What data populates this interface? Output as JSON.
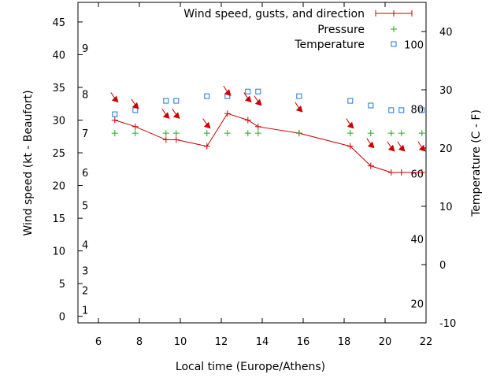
{
  "chart_data": {
    "type": "line",
    "xlabel": "Local time (Europe/Athens)",
    "ylabel": "Wind speed (kt - Beaufort)",
    "y2label": "Temperature (C - F)",
    "xlim": [
      5,
      22
    ],
    "ylim": [
      -1,
      48
    ],
    "y2lim": [
      -10,
      45
    ],
    "x_ticks": [
      6,
      8,
      10,
      12,
      14,
      16,
      18,
      20,
      22
    ],
    "y_ticks": [
      0,
      5,
      10,
      15,
      20,
      25,
      30,
      35,
      40,
      45
    ],
    "y2_ticks": [
      -10,
      0,
      10,
      20,
      30,
      40
    ],
    "beaufort_labels": [
      {
        "label": "1",
        "kt": 1
      },
      {
        "label": "2",
        "kt": 4
      },
      {
        "label": "3",
        "kt": 7
      },
      {
        "label": "4",
        "kt": 11
      },
      {
        "label": "5",
        "kt": 17
      },
      {
        "label": "6",
        "kt": 22
      },
      {
        "label": "7",
        "kt": 28
      },
      {
        "label": "8",
        "kt": 34
      },
      {
        "label": "9",
        "kt": 41
      }
    ],
    "fahrenheit_labels": [
      {
        "label": "20",
        "c": -6.7
      },
      {
        "label": "40",
        "c": 4.4
      },
      {
        "label": "60",
        "c": 15.6
      },
      {
        "label": "80",
        "c": 26.7
      },
      {
        "label": "100",
        "c": 37.8
      }
    ],
    "legend": {
      "position": "top-right",
      "entries": [
        "Wind speed, gusts, and direction",
        "Pressure",
        "Temperature"
      ]
    },
    "series": [
      {
        "name": "Wind speed, gusts, and direction",
        "style": "line-points",
        "color": "#cc0000",
        "x": [
          6.8,
          7.8,
          9.3,
          9.8,
          11.3,
          12.3,
          13.3,
          13.8,
          15.8,
          18.3,
          19.3,
          20.3,
          20.8,
          21.8
        ],
        "y": [
          30,
          29,
          27,
          27,
          26,
          31,
          30,
          29,
          28,
          26,
          23,
          22,
          22,
          22
        ]
      },
      {
        "name": "Pressure",
        "style": "points-plus",
        "color": "#22aa22",
        "x": [
          6.8,
          7.8,
          9.3,
          9.8,
          11.3,
          12.3,
          13.3,
          13.8,
          15.8,
          18.3,
          19.3,
          20.3,
          20.8,
          21.8
        ],
        "y": [
          28,
          28,
          28,
          28,
          28,
          28,
          28,
          28,
          28,
          28,
          28,
          28,
          28,
          28
        ]
      },
      {
        "name": "Temperature",
        "style": "points-square",
        "color": "#1f77d4",
        "axis": "y2",
        "x": [
          6.8,
          7.8,
          9.3,
          9.8,
          11.3,
          12.3,
          13.3,
          13.8,
          15.8,
          18.3,
          19.3,
          20.3,
          20.8,
          21.8
        ],
        "y": [
          25.8,
          26.5,
          28.1,
          28.1,
          28.9,
          28.9,
          29.7,
          29.7,
          28.9,
          28.1,
          27.3,
          26.5,
          26.5,
          26.5
        ]
      }
    ],
    "wind_arrows": {
      "color": "#cc0000",
      "x": [
        6.8,
        7.8,
        9.3,
        9.8,
        11.3,
        12.3,
        13.3,
        13.8,
        15.8,
        18.3,
        19.3,
        20.3,
        20.8,
        21.8
      ],
      "y": [
        33.5,
        32.5,
        31,
        31,
        29.5,
        34.5,
        33.5,
        33,
        32,
        29.5,
        26.5,
        26,
        26,
        26
      ]
    }
  }
}
